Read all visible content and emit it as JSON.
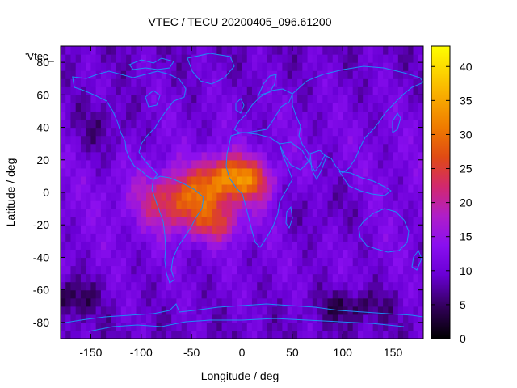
{
  "chart_data": {
    "type": "heatmap",
    "title": "VTEC / TECU 20200405_096.61200",
    "xlabel": "Longitude / deg",
    "ylabel": "Latitude / deg",
    "key_label": "'Vtec_",
    "xlim": [
      -180,
      180
    ],
    "ylim": [
      -90,
      90
    ],
    "x_ticks": [
      -150,
      -100,
      -50,
      0,
      50,
      100,
      150
    ],
    "y_ticks": [
      -80,
      -60,
      -40,
      -20,
      0,
      20,
      40,
      60,
      80
    ],
    "colorbar": {
      "range": [
        0,
        43
      ],
      "ticks": [
        0,
        5,
        10,
        15,
        20,
        25,
        30,
        35,
        40
      ],
      "palette": "black-purple-red-orange-yellow"
    },
    "grid_resolution_deg": [
      5,
      5
    ],
    "field": {
      "background_min": 8,
      "background_max": 14,
      "peak_value": 35,
      "peak_region": "South America / tropical Atlantic / west Africa, approx. lon -70 to 30, lat -20 to 25",
      "low_regions": [
        "southeast Pacific near lon -170, lat -65",
        "Indian Ocean south near lon 110, lat -70"
      ]
    },
    "overlay": "coastlines",
    "colors": {
      "coastline": "#1e8cf5",
      "background": "#ffffff"
    }
  }
}
